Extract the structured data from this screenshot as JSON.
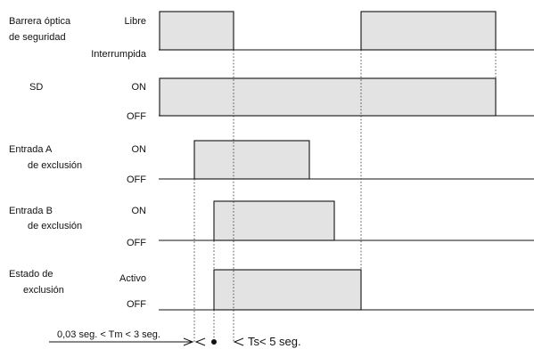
{
  "signals": [
    {
      "name_lines": [
        "Barrera óptica",
        "de seguridad"
      ],
      "high_state": "Libre",
      "low_state": "Interrumpida",
      "pulses": [
        [
          "t1",
          "t4"
        ],
        [
          "t6",
          "t7"
        ]
      ]
    },
    {
      "name_lines": [
        "SD"
      ],
      "high_state": "ON",
      "low_state": "OFF",
      "pulses": [
        [
          "t0",
          "t7"
        ]
      ]
    },
    {
      "name_lines": [
        "Entrada A",
        "de exclusión"
      ],
      "high_state": "ON",
      "low_state": "OFF",
      "pulses": [
        [
          "t2",
          "t5"
        ]
      ]
    },
    {
      "name_lines": [
        "Entrada B",
        "de exclusión"
      ],
      "high_state": "ON",
      "low_state": "OFF",
      "pulses": [
        [
          "t3",
          "t5b"
        ]
      ]
    },
    {
      "name_lines": [
        "Estado de",
        "exclusión"
      ],
      "high_state": "Activo",
      "low_state": "OFF",
      "pulses": [
        [
          "t3",
          "t6"
        ]
      ]
    }
  ],
  "annotations": {
    "tm": "0,03 seg. < Tm < 3 seg.",
    "ts": "Ts< 5 seg."
  }
}
